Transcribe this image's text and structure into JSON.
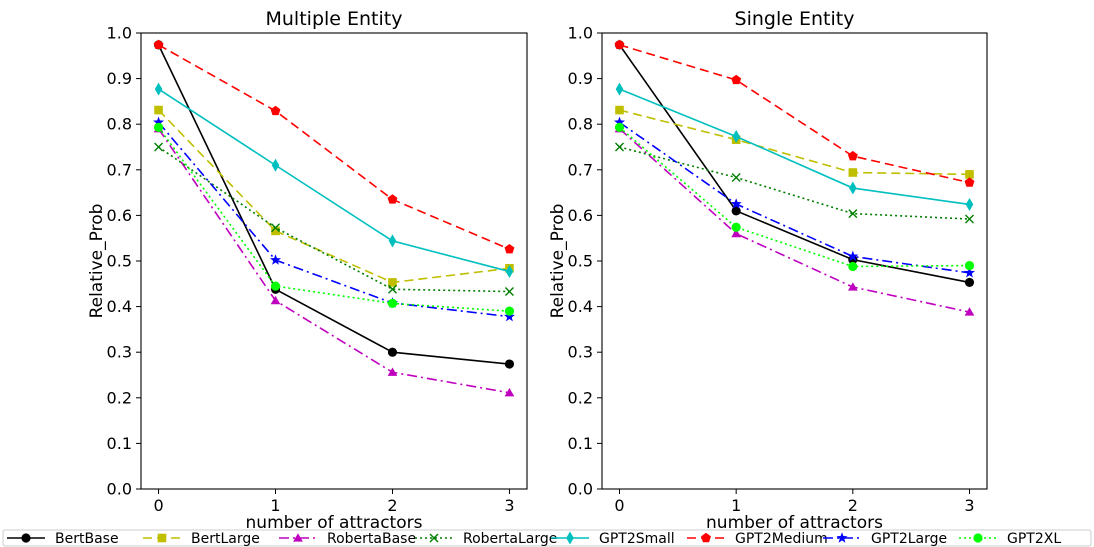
{
  "chart_data": [
    {
      "type": "line",
      "title": "Multiple Entity",
      "xlabel": "number of attractors",
      "ylabel": "Relative_Prob",
      "x": [
        0,
        1,
        2,
        3
      ],
      "xlim": [
        -0.15,
        3.15
      ],
      "ylim": [
        0.0,
        1.0
      ],
      "xticks": [
        "0",
        "1",
        "2",
        "3"
      ],
      "yticks": [
        "0.0",
        "0.1",
        "0.2",
        "0.3",
        "0.4",
        "0.5",
        "0.6",
        "0.7",
        "0.8",
        "0.9",
        "1.0"
      ],
      "grid": false,
      "series": [
        {
          "name": "BertBase",
          "values": [
            0.974,
            0.438,
            0.3,
            0.274
          ],
          "color": "#000000",
          "dash": "",
          "marker": "circle"
        },
        {
          "name": "BertLarge",
          "values": [
            0.831,
            0.566,
            0.453,
            0.484
          ],
          "color": "#bfbf00",
          "dash": "9,5",
          "marker": "square"
        },
        {
          "name": "RobertaBase",
          "values": [
            0.79,
            0.413,
            0.256,
            0.211
          ],
          "color": "#bf00bf",
          "dash": "10,4,2,4",
          "marker": "triangle"
        },
        {
          "name": "RobertaLarge",
          "values": [
            0.75,
            0.573,
            0.438,
            0.433
          ],
          "color": "#007f00",
          "dash": "2,3",
          "marker": "x"
        },
        {
          "name": "GPT2Small",
          "values": [
            0.877,
            0.71,
            0.544,
            0.477
          ],
          "color": "#00bfbf",
          "dash": "",
          "marker": "thin_diamond"
        },
        {
          "name": "GPT2Medium",
          "values": [
            0.974,
            0.829,
            0.635,
            0.526
          ],
          "color": "#ff0000",
          "dash": "9,5",
          "marker": "pentagon"
        },
        {
          "name": "GPT2Large",
          "values": [
            0.804,
            0.502,
            0.408,
            0.378
          ],
          "color": "#0000ff",
          "dash": "10,4,2,4",
          "marker": "star"
        },
        {
          "name": "GPT2XL",
          "values": [
            0.793,
            0.445,
            0.407,
            0.39
          ],
          "color": "#00ff00",
          "dash": "2,3",
          "marker": "circle"
        }
      ]
    },
    {
      "type": "line",
      "title": "Single Entity",
      "xlabel": "number of attractors",
      "ylabel": "Relative_Prob",
      "x": [
        0,
        1,
        2,
        3
      ],
      "xlim": [
        -0.15,
        3.15
      ],
      "ylim": [
        0.0,
        1.0
      ],
      "xticks": [
        "0",
        "1",
        "2",
        "3"
      ],
      "yticks": [
        "0.0",
        "0.1",
        "0.2",
        "0.3",
        "0.4",
        "0.5",
        "0.6",
        "0.7",
        "0.8",
        "0.9",
        "1.0"
      ],
      "grid": false,
      "series": [
        {
          "name": "BertBase",
          "values": [
            0.974,
            0.61,
            0.503,
            0.453
          ],
          "color": "#000000",
          "dash": "",
          "marker": "circle"
        },
        {
          "name": "BertLarge",
          "values": [
            0.831,
            0.766,
            0.694,
            0.69
          ],
          "color": "#bfbf00",
          "dash": "9,5",
          "marker": "square"
        },
        {
          "name": "RobertaBase",
          "values": [
            0.79,
            0.56,
            0.443,
            0.388
          ],
          "color": "#bf00bf",
          "dash": "10,4,2,4",
          "marker": "triangle"
        },
        {
          "name": "RobertaLarge",
          "values": [
            0.75,
            0.683,
            0.604,
            0.592
          ],
          "color": "#007f00",
          "dash": "2,3",
          "marker": "x"
        },
        {
          "name": "GPT2Small",
          "values": [
            0.877,
            0.773,
            0.66,
            0.624
          ],
          "color": "#00bfbf",
          "dash": "",
          "marker": "thin_diamond"
        },
        {
          "name": "GPT2Medium",
          "values": [
            0.974,
            0.897,
            0.73,
            0.672
          ],
          "color": "#ff0000",
          "dash": "9,5",
          "marker": "pentagon"
        },
        {
          "name": "GPT2Large",
          "values": [
            0.804,
            0.625,
            0.51,
            0.474
          ],
          "color": "#0000ff",
          "dash": "10,4,2,4",
          "marker": "star"
        },
        {
          "name": "GPT2XL",
          "values": [
            0.793,
            0.574,
            0.488,
            0.49
          ],
          "color": "#00ff00",
          "dash": "2,3",
          "marker": "circle"
        }
      ]
    }
  ],
  "legend": {
    "placement": "bottom",
    "entries": [
      "BertBase",
      "BertLarge",
      "RobertaBase",
      "RobertaLarge",
      "GPT2Small",
      "GPT2Medium",
      "GPT2Large",
      "GPT2XL"
    ]
  }
}
